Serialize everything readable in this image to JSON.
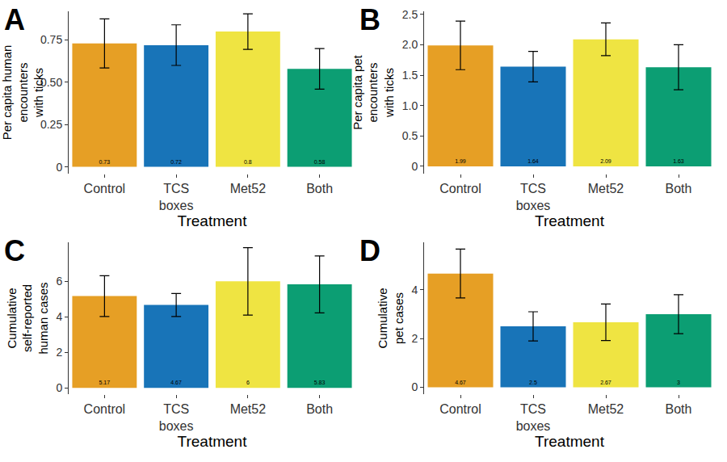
{
  "chart_data": [
    {
      "type": "bar",
      "title": "A",
      "categories": [
        "Control",
        "TCS boxes",
        "Met52",
        "Both"
      ],
      "values": [
        0.73,
        0.72,
        0.8,
        0.58
      ],
      "errors": [
        0.145,
        0.12,
        0.105,
        0.12
      ],
      "colors": [
        "#E69F25",
        "#1874B8",
        "#EFE442",
        "#0C9E73"
      ],
      "xlabel": "Treatment",
      "ylabel": "Per capita human\nencounters\nwith ticks",
      "ylim": [
        -0.04,
        0.92
      ],
      "yticks": [
        0,
        0.25,
        {
          "value": 0.5,
          "label": "0.50"
        },
        0.75
      ],
      "grid": false,
      "data_labels": true
    },
    {
      "type": "bar",
      "title": "B",
      "categories": [
        "Control",
        "TCS boxes",
        "Met52",
        "Both"
      ],
      "values": [
        1.99,
        1.64,
        2.09,
        1.63
      ],
      "errors": [
        0.4,
        0.25,
        0.27,
        0.37
      ],
      "colors": [
        "#E69F25",
        "#1874B8",
        "#EFE442",
        "#0C9E73"
      ],
      "xlabel": "Treatment",
      "ylabel": "Per capita pet\nencounters\nwith ticks",
      "ylim": [
        -0.12,
        2.55
      ],
      "yticks": [
        0,
        0.5,
        {
          "value": 1,
          "label": "1.0"
        },
        1.5,
        {
          "value": 2,
          "label": "2.0"
        },
        2.5
      ],
      "grid": false,
      "data_labels": true
    },
    {
      "type": "bar",
      "title": "C",
      "categories": [
        "Control",
        "TCS boxes",
        "Met52",
        "Both"
      ],
      "values": [
        5.17,
        4.67,
        6,
        5.83
      ],
      "errors": [
        1.15,
        0.65,
        1.9,
        1.6
      ],
      "colors": [
        "#E69F25",
        "#1874B8",
        "#EFE442",
        "#0C9E73"
      ],
      "xlabel": "Treatment",
      "ylabel": "Cumulative\nself-reported\nhuman cases",
      "ylim": [
        -0.35,
        8.2
      ],
      "yticks": [
        0,
        2,
        4,
        6
      ],
      "grid": false,
      "data_labels": true
    },
    {
      "type": "bar",
      "title": "D",
      "categories": [
        "Control",
        "TCS boxes",
        "Met52",
        "Both"
      ],
      "values": [
        4.67,
        2.5,
        2.67,
        3
      ],
      "errors": [
        1.0,
        0.6,
        0.75,
        0.8
      ],
      "colors": [
        "#E69F25",
        "#1874B8",
        "#EFE442",
        "#0C9E73"
      ],
      "xlabel": "Treatment",
      "ylabel": "Cumulative\npet cases",
      "ylim": [
        -0.28,
        5.95
      ],
      "yticks": [
        0,
        2,
        4
      ],
      "grid": false,
      "data_labels": true
    }
  ]
}
